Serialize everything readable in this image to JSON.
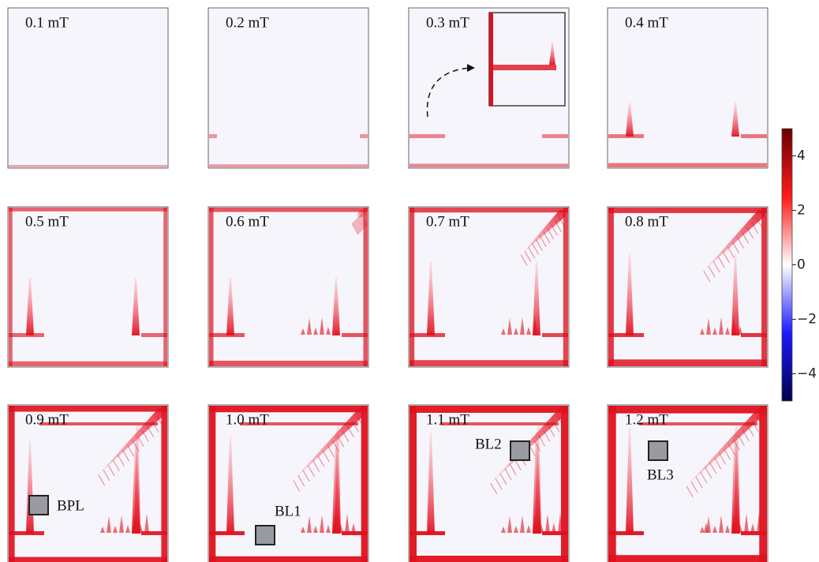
{
  "panels": [
    {
      "label": "0.1 mT"
    },
    {
      "label": "0.2 mT"
    },
    {
      "label": "0.3 mT"
    },
    {
      "label": "0.4 mT"
    },
    {
      "label": "0.5 mT"
    },
    {
      "label": "0.6 mT"
    },
    {
      "label": "0.7 mT"
    },
    {
      "label": "0.8 mT"
    },
    {
      "label": "0.9 mT",
      "annotation": "BPL"
    },
    {
      "label": "1.0 mT",
      "annotation": "BL1"
    },
    {
      "label": "1.1 mT",
      "annotation": "BL2"
    },
    {
      "label": "1.2 mT",
      "annotation": "BL3"
    }
  ],
  "colorbar": {
    "lim": [
      -5,
      5
    ],
    "ticks": [
      4,
      2,
      0,
      {
        "value": -2,
        "label": "−2"
      },
      {
        "value": -4,
        "label": "−4"
      }
    ]
  }
}
